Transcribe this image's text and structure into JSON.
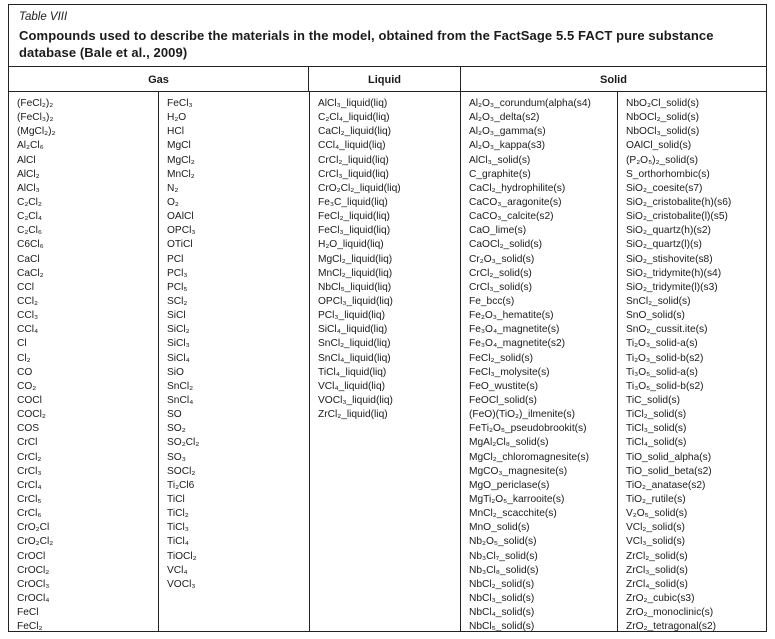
{
  "table": {
    "label": "Table VIII",
    "caption": "Compounds used to describe the materials in the model, obtained from the FactSage 5.5 FACT pure substance database (Bale et al., 2009)",
    "headers": {
      "gas": "Gas",
      "liquid": "Liquid",
      "solid": "Solid"
    }
  },
  "columns": {
    "gas_1": [
      "(FeCl₂)₂",
      "(FeCl₃)₂",
      "(MgCl₂)₂",
      "Al₂Cl₆",
      "AlCl",
      "AlCl₂",
      "AlCl₃",
      "C₂Cl₂",
      "C₂Cl₄",
      "C₂Cl₆",
      "C6Cl₆",
      "CaCl",
      "CaCl₂",
      "CCl",
      "CCl₂",
      "CCl₃",
      "CCl₄",
      "Cl",
      "Cl₂",
      "CO",
      "CO₂",
      "COCl",
      "COCl₂",
      "COS",
      "CrCl",
      "CrCl₂",
      "CrCl₃",
      "CrCl₄",
      "CrCl₅",
      "CrCl₆",
      "CrO₂Cl",
      "CrO₂Cl₂",
      "CrOCl",
      "CrOCl₂",
      "CrOCl₃",
      "CrOCl₄",
      "FeCl",
      "FeCl₂"
    ],
    "gas_2": [
      "FeCl₃",
      "H₂O",
      "HCl",
      "MgCl",
      "MgCl₂",
      "MnCl₂",
      "N₂",
      "O₂",
      "OAlCl",
      "OPCl₃",
      "OTiCl",
      "PCl",
      "PCl₃",
      "PCl₅",
      "SCl₂",
      "SiCl",
      "SiCl₂",
      "SiCl₃",
      "SiCl₄",
      "SiO",
      "SnCl₂",
      "SnCl₄",
      "SO",
      "SO₂",
      "SO₂Cl₂",
      "SO₃",
      "SOCl₂",
      "Ti₂Cl6",
      "TiCl",
      "TiCl₂",
      "TiCl₃",
      "TiCl₄",
      "TiOCl₂",
      "VCl₄",
      "VOCl₃"
    ],
    "liquid": [
      "AlCl₃_liquid(liq)",
      "C₂Cl₄_liquid(liq)",
      "CaCl₂_liquid(liq)",
      "CCl₄_liquid(liq)",
      "CrCl₂_liquid(liq)",
      "CrCl₃_liquid(liq)",
      "CrO₂Cl₂_liquid(liq)",
      "Fe₃C_liquid(liq)",
      "FeCl₂_liquid(liq)",
      "FeCl₃_liquid(liq)",
      "H₂O_liquid(liq)",
      "MgCl₂_liquid(liq)",
      "MnCl₂_liquid(liq)",
      "NbCl₅_liquid(liq)",
      "OPCl₃_liquid(liq)",
      "PCl₃_liquid(liq)",
      "SiCl₄_liquid(liq)",
      "SnCl₂_liquid(liq)",
      "SnCl₄_liquid(liq)",
      "TiCl₄_liquid(liq)",
      "VCl₄_liquid(liq)",
      "VOCl₃_liquid(liq)",
      "ZrCl₂_liquid(liq)"
    ],
    "solid_1": [
      "Al₂O₃_corundum(alpha(s4)",
      "Al₂O₃_delta(s2)",
      "Al₂O₃_gamma(s)",
      "Al₂O₃_kappa(s3)",
      "AlCl₃_solid(s)",
      "C_graphite(s)",
      "CaCl₂_hydrophilite(s)",
      "CaCO₃_aragonite(s)",
      "CaCO₃_calcite(s2)",
      "CaO_lime(s)",
      "CaOCl₂_solid(s)",
      "Cr₂O₃_solid(s)",
      "CrCl₂_solid(s)",
      "CrCl₃_solid(s)",
      "Fe_bcc(s)",
      "Fe₂O₃_hematite(s)",
      "Fe₃O₄_magnetite(s)",
      "Fe₃O₄_magnetite(s2)",
      "FeCl₂_solid(s)",
      "FeCl₃_molysite(s)",
      "FeO_wustite(s)",
      "FeOCl_solid(s)",
      "(FeO)(TiO₂)_ilmenite(s)",
      "FeTi₂O₅_pseudobrookit(s)",
      "MgAl₂Cl₈_solid(s)",
      "MgCl₂_chloromagnesite(s)",
      "MgCO₃_magnesite(s)",
      "MgO_periclase(s)",
      "MgTi₂O₅_karrooite(s)",
      "MnCl₂_scacchite(s)",
      "MnO_solid(s)",
      "Nb₂O₅_solid(s)",
      "Nb₃Cl₇_solid(s)",
      "Nb₃Cl₈_solid(s)",
      "NbCl₂_solid(s)",
      "NbCl₃_solid(s)",
      "NbCl₄_solid(s)",
      "NbCl₅_solid(s)"
    ],
    "solid_2": [
      "NbO₂Cl_solid(s)",
      "NbOCl₂_solid(s)",
      "NbOCl₃_solid(s)",
      "OAlCl_solid(s)",
      "(P₂O₅)₂_solid(s)",
      "S_orthorhombic(s)",
      "SiO₂_coesite(s7)",
      "SiO₂_cristobalite(h)(s6)",
      "SiO₂_cristobalite(l)(s5)",
      "SiO₂_quartz(h)(s2)",
      "SiO₂_quartz(l)(s)",
      "SiO₂_stishovite(s8)",
      "SiO₂_tridymite(h)(s4)",
      "SiO₂_tridymite(l)(s3)",
      "SnCl₂_solid(s)",
      "SnO_solid(s)",
      "SnO₂_cussit.ite(s)",
      "Ti₂O₃_solid-a(s)",
      "Ti₂O₃_solid-b(s2)",
      "Ti₃O₅_solid-a(s)",
      "Ti₃O₅_solid-b(s2)",
      "TiC_solid(s)",
      "TiCl₂_solid(s)",
      "TiCl₃_solid(s)",
      "TiCl₄_solid(s)",
      "TiO_solid_alpha(s)",
      "TiO_solid_beta(s2)",
      "TiO₂_anatase(s2)",
      "TiO₂_rutile(s)",
      "V₂O₅_solid(s)",
      "VCl₂_solid(s)",
      "VCl₃_solid(s)",
      "ZrCl₂_solid(s)",
      "ZrCl₃_solid(s)",
      "ZrCl₄_solid(s)",
      "ZrO₂_cubic(s3)",
      "ZrO₂_monoclinic(s)",
      "ZrO₂_tetragonal(s2)"
    ]
  }
}
